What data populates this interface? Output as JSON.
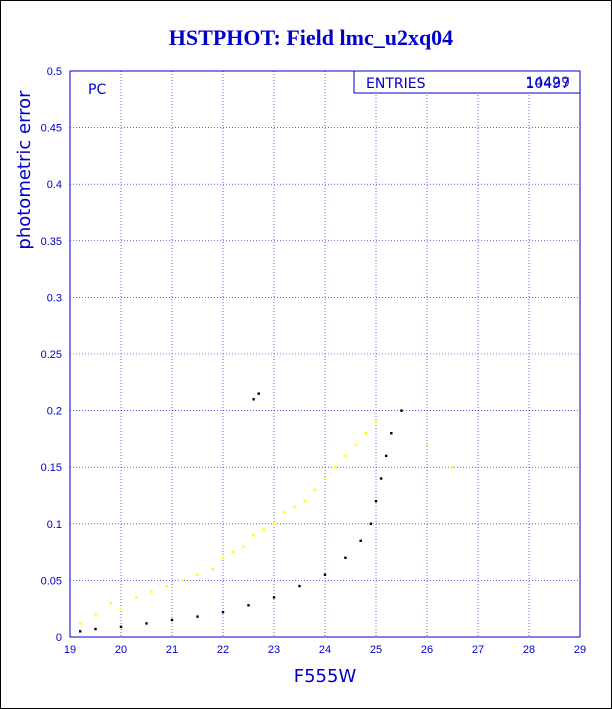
{
  "chart_data": {
    "type": "scatter",
    "title": "HSTPHOT: Field lmc_u2xq04",
    "xlabel": "F555W",
    "ylabel": "photometric error",
    "xlim": [
      19,
      29
    ],
    "ylim": [
      0,
      0.5
    ],
    "xticks": [
      "19",
      "20",
      "21",
      "22",
      "23",
      "24",
      "25",
      "26",
      "27",
      "28",
      "29"
    ],
    "yticks": [
      "0",
      "0.05",
      "0.1",
      "0.15",
      "0.2",
      "0.25",
      "0.3",
      "0.35",
      "0.4",
      "0.45",
      "0.5"
    ],
    "grid": true,
    "annotation": "PC",
    "stats_box": {
      "label": "ENTRIES",
      "value": "10497",
      "overprint": "14429"
    },
    "series": [
      {
        "name": "",
        "color": "#ffff00",
        "points": [
          [
            19.2,
            0.012
          ],
          [
            19.5,
            0.02
          ],
          [
            19.8,
            0.03
          ],
          [
            20.0,
            0.025
          ],
          [
            20.3,
            0.035
          ],
          [
            20.6,
            0.04
          ],
          [
            20.9,
            0.045
          ],
          [
            21.2,
            0.05
          ],
          [
            21.5,
            0.055
          ],
          [
            21.8,
            0.06
          ],
          [
            22.0,
            0.07
          ],
          [
            22.2,
            0.075
          ],
          [
            22.4,
            0.08
          ],
          [
            22.6,
            0.09
          ],
          [
            22.8,
            0.095
          ],
          [
            23.0,
            0.1
          ],
          [
            23.2,
            0.11
          ],
          [
            23.4,
            0.115
          ],
          [
            23.6,
            0.12
          ],
          [
            23.8,
            0.13
          ],
          [
            24.0,
            0.14
          ],
          [
            24.2,
            0.15
          ],
          [
            24.4,
            0.16
          ],
          [
            24.6,
            0.17
          ],
          [
            24.8,
            0.18
          ],
          [
            25.0,
            0.19
          ],
          [
            25.5,
            0.2
          ],
          [
            26.0,
            0.17
          ],
          [
            26.5,
            0.15
          ]
        ]
      },
      {
        "name": "",
        "color": "#000000",
        "points": [
          [
            19.2,
            0.005
          ],
          [
            19.5,
            0.007
          ],
          [
            20.0,
            0.009
          ],
          [
            20.5,
            0.012
          ],
          [
            21.0,
            0.015
          ],
          [
            21.5,
            0.018
          ],
          [
            22.0,
            0.022
          ],
          [
            22.5,
            0.028
          ],
          [
            23.0,
            0.035
          ],
          [
            23.5,
            0.045
          ],
          [
            24.0,
            0.055
          ],
          [
            24.4,
            0.07
          ],
          [
            24.7,
            0.085
          ],
          [
            24.9,
            0.1
          ],
          [
            25.0,
            0.12
          ],
          [
            25.1,
            0.14
          ],
          [
            25.2,
            0.16
          ],
          [
            25.3,
            0.18
          ],
          [
            25.5,
            0.2
          ],
          [
            22.6,
            0.21
          ],
          [
            22.7,
            0.215
          ]
        ]
      }
    ]
  }
}
